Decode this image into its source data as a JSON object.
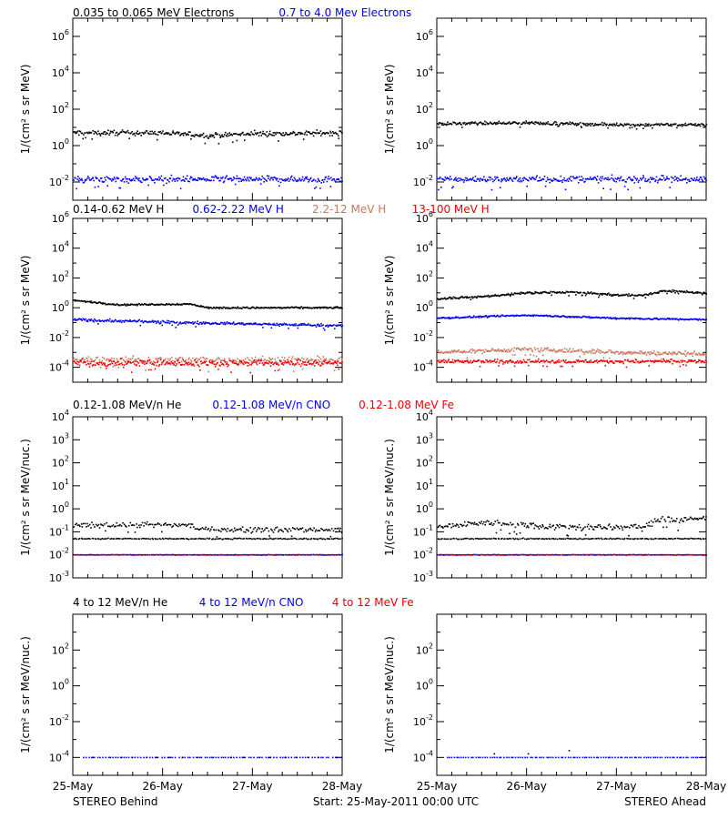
{
  "colors": {
    "black": "#000000",
    "blue": "#0000ee",
    "tan": "#c87860",
    "red": "#ee0000"
  },
  "footer": {
    "left": "STEREO Behind",
    "center": "Start: 25-May-2011 00:00 UTC",
    "right": "STEREO Ahead"
  },
  "x_ticks": [
    "25-May",
    "26-May",
    "27-May",
    "28-May"
  ],
  "rows": [
    {
      "legend": [
        {
          "text": "0.035 to 0.065 MeV Electrons",
          "color": "black"
        },
        {
          "text": "0.7 to 4.0 Mev Electrons",
          "color": "blue"
        }
      ]
    },
    {
      "legend": [
        {
          "text": "0.14-0.62 MeV H",
          "color": "black"
        },
        {
          "text": "0.62-2.22 MeV H",
          "color": "blue"
        },
        {
          "text": "2.2-12 MeV H",
          "color": "tan"
        },
        {
          "text": "13-100 MeV H",
          "color": "red"
        }
      ]
    },
    {
      "legend": [
        {
          "text": "0.12-1.08 MeV/n He",
          "color": "black"
        },
        {
          "text": "0.12-1.08 MeV/n CNO",
          "color": "blue"
        },
        {
          "text": "0.12-1.08 MeV Fe",
          "color": "red"
        }
      ]
    },
    {
      "legend": [
        {
          "text": "4 to 12 MeV/n He",
          "color": "black"
        },
        {
          "text": "4 to 12 MeV/n CNO",
          "color": "blue"
        },
        {
          "text": "4 to 12 MeV Fe",
          "color": "red"
        }
      ]
    }
  ],
  "chart_data": [
    {
      "type": "scatter",
      "id": "r0-behind",
      "ylabel": "1/(cm² s sr MeV)",
      "yscale": "log",
      "ylim_exp": [
        -3,
        7
      ],
      "tick_exps": [
        -2,
        0,
        2,
        4,
        6
      ],
      "xlim_days": [
        0,
        3
      ],
      "series": [
        {
          "color": "black",
          "segments": [
            [
              0,
              0.7
            ],
            [
              1,
              0.7
            ],
            [
              1.5,
              0.55
            ],
            [
              2,
              0.65
            ],
            [
              3,
              0.7
            ]
          ],
          "scatter": 0.12,
          "density": 320
        },
        {
          "color": "blue",
          "segments": [
            [
              0,
              -1.85
            ],
            [
              3,
              -1.85
            ]
          ],
          "scatter": 0.15,
          "density": 320
        }
      ]
    },
    {
      "type": "scatter",
      "id": "r0-ahead",
      "ylabel": "1/(cm² s sr MeV)",
      "yscale": "log",
      "ylim_exp": [
        -3,
        7
      ],
      "tick_exps": [
        -2,
        0,
        2,
        4,
        6
      ],
      "xlim_days": [
        0,
        3
      ],
      "series": [
        {
          "color": "black",
          "segments": [
            [
              0,
              1.2
            ],
            [
              1,
              1.25
            ],
            [
              2,
              1.15
            ],
            [
              3,
              1.15
            ]
          ],
          "scatter": 0.07,
          "density": 320
        },
        {
          "color": "blue",
          "segments": [
            [
              0,
              -1.85
            ],
            [
              3,
              -1.85
            ]
          ],
          "scatter": 0.15,
          "density": 320
        }
      ]
    },
    {
      "type": "scatter",
      "id": "r1-behind",
      "ylabel": "1/(cm² s sr MeV)",
      "yscale": "log",
      "ylim_exp": [
        -5,
        6
      ],
      "tick_exps": [
        -4,
        -2,
        0,
        2,
        4,
        6
      ],
      "xlim_days": [
        0,
        3
      ],
      "series": [
        {
          "color": "black",
          "segments": [
            [
              0,
              0.5
            ],
            [
              0.5,
              0.2
            ],
            [
              1.3,
              0.25
            ],
            [
              1.5,
              0.0
            ],
            [
              3,
              0.0
            ]
          ],
          "scatter": 0.05,
          "density": 320
        },
        {
          "color": "blue",
          "segments": [
            [
              0,
              -0.8
            ],
            [
              1.2,
              -1.0
            ],
            [
              3,
              -1.2
            ]
          ],
          "scatter": 0.08,
          "density": 320
        },
        {
          "color": "tan",
          "segments": [
            [
              0,
              -3.5
            ],
            [
              3,
              -3.5
            ]
          ],
          "scatter": 0.2,
          "density": 240
        },
        {
          "color": "red",
          "segments": [
            [
              0,
              -3.7
            ],
            [
              3,
              -3.7
            ]
          ],
          "scatter": 0.2,
          "density": 320
        }
      ]
    },
    {
      "type": "scatter",
      "id": "r1-ahead",
      "ylabel": "1/(cm² s sr MeV)",
      "yscale": "log",
      "ylim_exp": [
        -5,
        6
      ],
      "tick_exps": [
        -4,
        -2,
        0,
        2,
        4,
        6
      ],
      "xlim_days": [
        0,
        3
      ],
      "series": [
        {
          "color": "black",
          "segments": [
            [
              0,
              0.6
            ],
            [
              0.5,
              0.75
            ],
            [
              1,
              1.0
            ],
            [
              1.5,
              1.05
            ],
            [
              2,
              0.85
            ],
            [
              2.3,
              0.85
            ],
            [
              2.55,
              1.15
            ],
            [
              2.8,
              1.05
            ],
            [
              3,
              1.0
            ]
          ],
          "scatter": 0.06,
          "density": 320
        },
        {
          "color": "blue",
          "segments": [
            [
              0,
              -0.7
            ],
            [
              1,
              -0.5
            ],
            [
              2,
              -0.7
            ],
            [
              3,
              -0.8
            ]
          ],
          "scatter": 0.05,
          "density": 320
        },
        {
          "color": "tan",
          "segments": [
            [
              0,
              -3.0
            ],
            [
              1,
              -2.8
            ],
            [
              2,
              -3.0
            ],
            [
              3,
              -3.1
            ]
          ],
          "scatter": 0.12,
          "density": 320
        },
        {
          "color": "red",
          "segments": [
            [
              0,
              -3.6
            ],
            [
              3,
              -3.6
            ]
          ],
          "scatter": 0.1,
          "density": 320
        }
      ]
    },
    {
      "type": "scatter",
      "id": "r2-behind",
      "ylabel": "1/(cm² s sr MeV/nuc.)",
      "yscale": "log",
      "ylim_exp": [
        -3,
        4
      ],
      "tick_exps": [
        -3,
        -2,
        -1,
        0,
        1,
        2,
        3,
        4
      ],
      "xlim_days": [
        0,
        3
      ],
      "series": [
        {
          "color": "black",
          "segments": [
            [
              0,
              -0.75
            ],
            [
              0.3,
              -0.7
            ],
            [
              1.3,
              -0.7
            ],
            [
              1.4,
              -0.9
            ],
            [
              3,
              -0.9
            ]
          ],
          "scatter": 0.1,
          "density": 220
        },
        {
          "color": "black",
          "segments": [
            [
              0,
              -1.3
            ],
            [
              3,
              -1.3
            ]
          ],
          "scatter": 0.02,
          "density": 180
        },
        {
          "color": "blue",
          "segments": [
            [
              0,
              -2.0
            ],
            [
              3,
              -2.0
            ]
          ],
          "scatter": 0.01,
          "density": 240
        },
        {
          "color": "red",
          "segments": [
            [
              0,
              -2.0
            ],
            [
              3,
              -2.0
            ]
          ],
          "scatter": 0.01,
          "density": 100
        }
      ]
    },
    {
      "type": "scatter",
      "id": "r2-ahead",
      "ylabel": "1/(cm² s sr MeV/nuc.)",
      "yscale": "log",
      "ylim_exp": [
        -3,
        4
      ],
      "tick_exps": [
        -3,
        -2,
        -1,
        0,
        1,
        2,
        3,
        4
      ],
      "xlim_days": [
        0,
        3
      ],
      "series": [
        {
          "color": "black",
          "segments": [
            [
              0,
              -0.8
            ],
            [
              0.5,
              -0.6
            ],
            [
              1.5,
              -0.8
            ],
            [
              2.3,
              -0.8
            ],
            [
              2.5,
              -0.4
            ],
            [
              2.7,
              -0.5
            ],
            [
              3,
              -0.4
            ]
          ],
          "scatter": 0.12,
          "density": 240
        },
        {
          "color": "black",
          "segments": [
            [
              0,
              -1.3
            ],
            [
              3,
              -1.3
            ]
          ],
          "scatter": 0.02,
          "density": 180
        },
        {
          "color": "blue",
          "segments": [
            [
              0,
              -2.0
            ],
            [
              3,
              -2.0
            ]
          ],
          "scatter": 0.01,
          "density": 240
        },
        {
          "color": "red",
          "segments": [
            [
              0,
              -2.0
            ],
            [
              3,
              -2.0
            ]
          ],
          "scatter": 0.01,
          "density": 120
        }
      ]
    },
    {
      "type": "scatter",
      "id": "r3-behind",
      "ylabel": "1/(cm² s sr MeV/nuc.)",
      "yscale": "log",
      "ylim_exp": [
        -5,
        4
      ],
      "tick_exps": [
        -4,
        -2,
        0,
        2
      ],
      "xlim_days": [
        0,
        3
      ],
      "series": [
        {
          "color": "blue",
          "segments": [
            [
              0.1,
              -4.0
            ],
            [
              3,
              -4.0
            ]
          ],
          "scatter": 0.0,
          "density": 90
        },
        {
          "color": "black",
          "segments": [
            [
              0.2,
              -4.0
            ],
            [
              3,
              -4.0
            ]
          ],
          "scatter": 0.0,
          "density": 20
        }
      ]
    },
    {
      "type": "scatter",
      "id": "r3-ahead",
      "ylabel": "1/(cm² s sr MeV/nuc.)",
      "yscale": "log",
      "ylim_exp": [
        -5,
        4
      ],
      "tick_exps": [
        -4,
        -2,
        0,
        2
      ],
      "xlim_days": [
        0,
        3
      ],
      "series": [
        {
          "color": "blue",
          "segments": [
            [
              0.1,
              -4.0
            ],
            [
              3,
              -4.0
            ]
          ],
          "scatter": 0.0,
          "density": 110
        },
        {
          "color": "black",
          "segments": [
            [
              0.6,
              -3.8
            ],
            [
              1.0,
              -3.8
            ],
            [
              1.65,
              -3.55
            ]
          ],
          "scatter": 0.0,
          "density": 3
        }
      ]
    }
  ]
}
